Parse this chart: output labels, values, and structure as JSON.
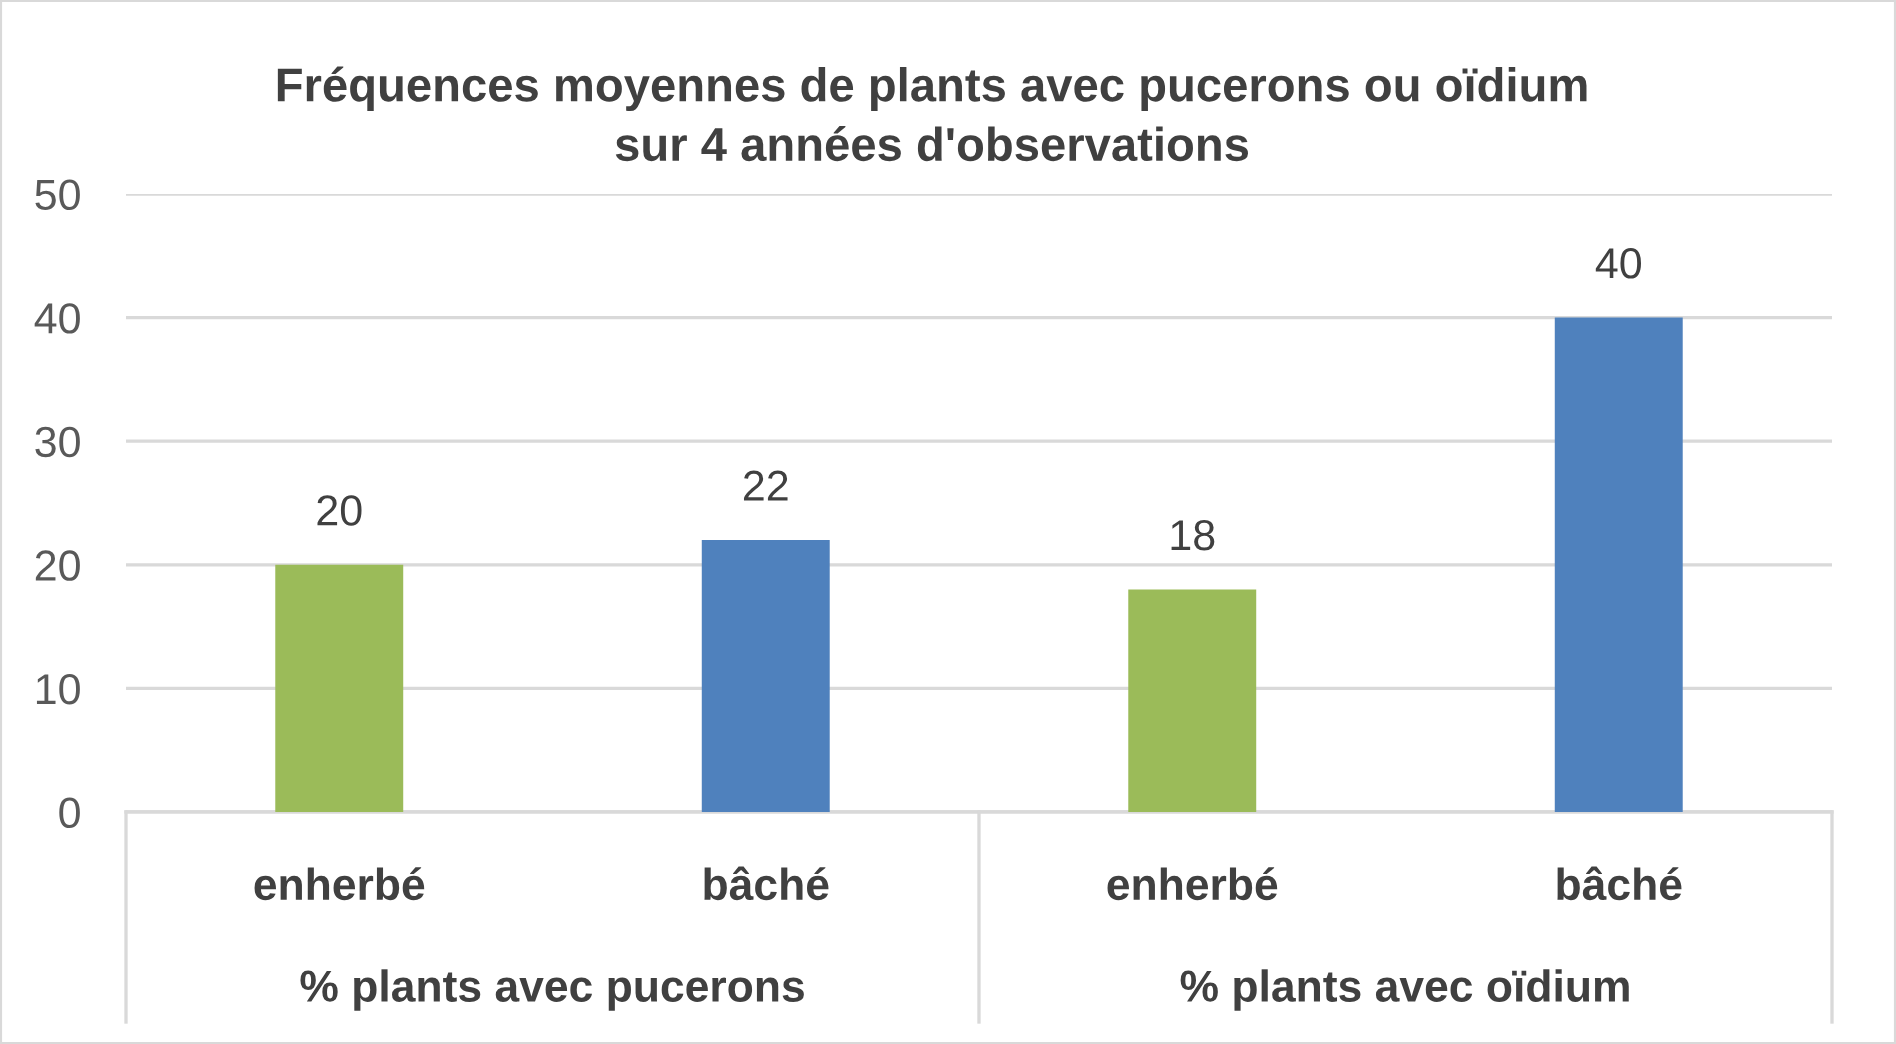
{
  "chart_data": {
    "type": "bar",
    "title": "Fréquences moyennes de plants avec pucerons ou oïdium\nsur 4 années d'observations",
    "categories": [
      "enherbé",
      "bâché",
      "enherbé",
      "bâché"
    ],
    "values": [
      20,
      22,
      18,
      40
    ],
    "colors": [
      "#9bbb59",
      "#4f81bd",
      "#9bbb59",
      "#4f81bd"
    ],
    "ylim": [
      0,
      50
    ],
    "yticks": [
      0,
      10,
      20,
      30,
      40,
      50
    ],
    "grid": "y",
    "data_labels": true,
    "annotations": [
      "% plants avec pucerons",
      "% plants avec oïdium"
    ]
  }
}
